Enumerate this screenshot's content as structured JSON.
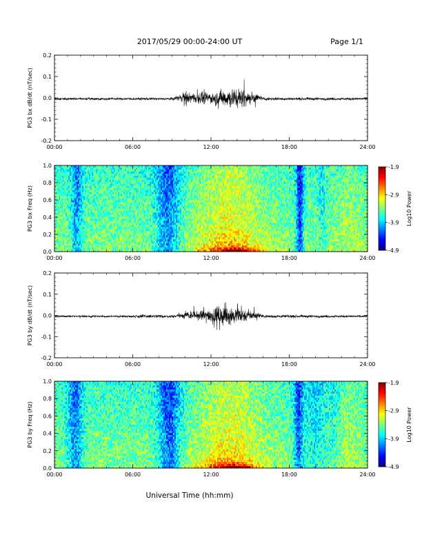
{
  "header": {
    "date_range": "2017/05/29  00:00-24:00 UT",
    "page": "Page 1/1"
  },
  "xaxis_title": "Universal Time (hh:mm)",
  "chart_data": [
    {
      "type": "line",
      "ylabel": "PG3 bx dB/dt (nT/sec)",
      "xlim": [
        "00:00",
        "24:00"
      ],
      "ylim": [
        -0.2,
        0.2
      ],
      "xticks": [
        "00:00",
        "06:00",
        "12:00",
        "18:00",
        "24:00"
      ],
      "yticks": [
        "0.2",
        "0.1",
        "0.0",
        "-0.1",
        "-0.2"
      ],
      "series": [
        {
          "values_summary": "quiet ~±0.01 outside 09:30-16:00 UT; burst peaking ~+0.09 / -0.11 around 13:00-14:30 UT",
          "envelope_hours": [
            0,
            9,
            10,
            11,
            12,
            13,
            14,
            15,
            15.5,
            16,
            24
          ],
          "envelope_amp": [
            0.012,
            0.012,
            0.045,
            0.055,
            0.06,
            0.09,
            0.1,
            0.07,
            0.04,
            0.015,
            0.012
          ]
        }
      ]
    },
    {
      "type": "heatmap",
      "ylabel": "PG3 bx Freq (Hz)",
      "xlim": [
        "00:00",
        "24:00"
      ],
      "ylim": [
        0.0,
        1.0
      ],
      "xticks": [
        "00:00",
        "06:00",
        "12:00",
        "18:00",
        "24:00"
      ],
      "yticks": [
        "1.0",
        "0.8",
        "0.6",
        "0.4",
        "0.2",
        "0.0"
      ],
      "colorbar": {
        "label": "Log10 Power",
        "ticks": [
          "-1.9",
          "-2.9",
          "-3.9",
          "-4.9"
        ],
        "range": [
          -4.9,
          -1.9
        ]
      },
      "features": "low power (blue/purple) columns near 01:30-02:00, 08:00-10:00 and 18:30-19:00 UT; elevated power (green/yellow) near 11:30-16:00 UT with orange/red at lowest frequencies around 13:00-15:00 UT"
    },
    {
      "type": "line",
      "ylabel": "PG3 by dB/dt (nT/sec)",
      "xlim": [
        "00:00",
        "24:00"
      ],
      "ylim": [
        -0.2,
        0.2
      ],
      "xticks": [
        "00:00",
        "06:00",
        "12:00",
        "18:00",
        "24:00"
      ],
      "yticks": [
        "0.2",
        "0.1",
        "0.0",
        "-0.1",
        "-0.2"
      ],
      "series": [
        {
          "values_summary": "quiet ~±0.01 outside 09:00-16:00 UT; burst peaking ~+0.09 / -0.12 around 12:30-14:00 UT",
          "envelope_hours": [
            0,
            6,
            6.3,
            9,
            10,
            11,
            12,
            13,
            14,
            15,
            16,
            24
          ],
          "envelope_amp": [
            0.01,
            0.01,
            0.02,
            0.012,
            0.035,
            0.045,
            0.07,
            0.1,
            0.08,
            0.05,
            0.015,
            0.01
          ]
        }
      ]
    },
    {
      "type": "heatmap",
      "ylabel": "PG3 by Freq (Hz)",
      "xlim": [
        "00:00",
        "24:00"
      ],
      "ylim": [
        0.0,
        1.0
      ],
      "xticks": [
        "00:00",
        "06:00",
        "12:00",
        "18:00",
        "24:00"
      ],
      "yticks": [
        "1.0",
        "0.8",
        "0.6",
        "0.4",
        "0.2",
        "0.0"
      ],
      "colorbar": {
        "label": "Log10 Power",
        "ticks": [
          "-1.9",
          "-2.9",
          "-3.9",
          "-4.9"
        ],
        "range": [
          -4.9,
          -1.9
        ]
      },
      "features": "low power (blue/purple) columns near 01:00-02:30, 08:00-10:00 and 18:30-22:00 UT; elevated power near 11:00-16:00 UT with yellow/orange at lowest frequencies around 12:30-15:00 UT"
    }
  ]
}
